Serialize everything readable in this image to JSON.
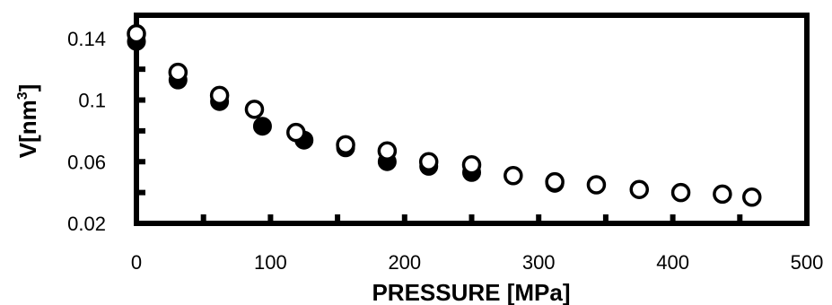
{
  "chart_data": {
    "type": "scatter",
    "xlabel": "PRESSURE [MPa]",
    "ylabel_base": "V[nm",
    "ylabel_sup": "3",
    "ylabel_close": "]",
    "xlim": [
      0,
      500
    ],
    "ylim": [
      0.02,
      0.155
    ],
    "x_ticks": [
      0,
      100,
      200,
      300,
      400,
      500
    ],
    "y_ticks": [
      0.02,
      0.06,
      0.1,
      0.14
    ],
    "x_tick_labels": [
      "0",
      "100",
      "200",
      "300",
      "400",
      "500"
    ],
    "y_tick_labels": [
      "0.02",
      "0.06",
      "0.1",
      "0.14"
    ],
    "grid": false,
    "series": [
      {
        "marker": "filled",
        "color": "#000000",
        "x": [
          0,
          31,
          62,
          94,
          125,
          156,
          187,
          218,
          250,
          281,
          312
        ],
        "y": [
          0.138,
          0.113,
          0.099,
          0.083,
          0.074,
          0.069,
          0.06,
          0.057,
          0.053,
          0.051,
          0.046
        ]
      },
      {
        "marker": "open",
        "color": "#000000",
        "x": [
          0,
          31,
          62,
          88,
          119,
          156,
          187,
          218,
          250,
          281,
          312,
          343,
          375,
          406,
          437,
          459
        ],
        "y": [
          0.143,
          0.118,
          0.103,
          0.094,
          0.079,
          0.071,
          0.067,
          0.06,
          0.058,
          0.051,
          0.047,
          0.045,
          0.042,
          0.04,
          0.039,
          0.037
        ]
      }
    ]
  }
}
